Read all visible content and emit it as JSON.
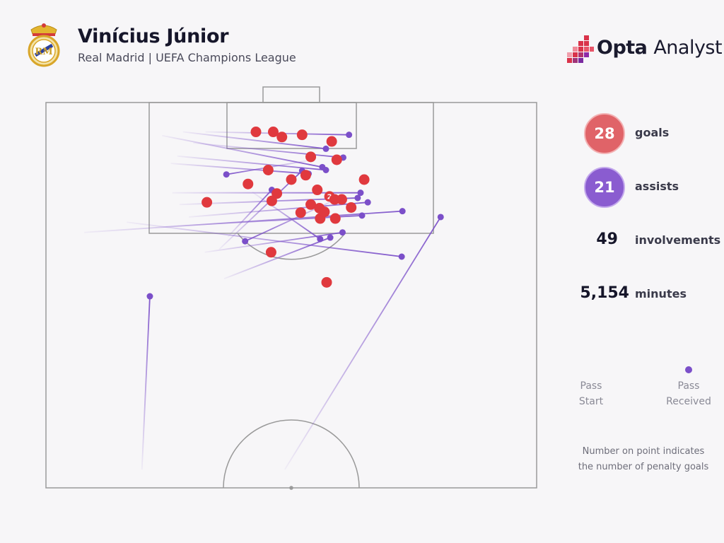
{
  "header": {
    "title": "Vinícius Júnior",
    "subtitle": "Real Madrid | UEFA Champions League",
    "brand_name": "Opta",
    "brand_suffix": "Analyst",
    "crest_icon": "real-madrid-crest-icon",
    "brand_icon": "opta-logo-icon"
  },
  "stats": {
    "goals_value": "28",
    "goals_label": "goals",
    "assists_value": "21",
    "assists_label": "assists",
    "involvements_value": "49",
    "involvements_label": "involvements",
    "minutes_value": "5,154",
    "minutes_label": "minutes"
  },
  "legend": {
    "start_line1": "Pass",
    "start_line2": "Start",
    "end_line1": "Pass",
    "end_line2": "Received",
    "note_line1": "Number on point indicates",
    "note_line2": "the number of penalty goals"
  },
  "colors": {
    "goal": "#e0393e",
    "assist": "#7b4fc9",
    "pitch_line": "#9a9a9a",
    "background": "#f7f6f8"
  },
  "chart_data": {
    "type": "scatter",
    "description": "Shot/assist map on a half pitch. Coordinates are in metres: x across the pitch width (0-68, left touchline to right), y distance from the goal line (0 at goal line). Goals are red circles at shot location; assists are purple lines from pass start to pass received point.",
    "x_range": [
      0,
      68
    ],
    "y_range": [
      0,
      52.5
    ],
    "goals": [
      {
        "x": 29.1,
        "y": 4.0
      },
      {
        "x": 31.5,
        "y": 4.0
      },
      {
        "x": 32.7,
        "y": 4.7
      },
      {
        "x": 35.5,
        "y": 4.4
      },
      {
        "x": 39.6,
        "y": 5.3
      },
      {
        "x": 36.7,
        "y": 7.4
      },
      {
        "x": 40.3,
        "y": 7.8
      },
      {
        "x": 30.8,
        "y": 9.2
      },
      {
        "x": 36.0,
        "y": 9.9
      },
      {
        "x": 34.0,
        "y": 10.5
      },
      {
        "x": 28.0,
        "y": 11.1
      },
      {
        "x": 44.1,
        "y": 10.5
      },
      {
        "x": 37.6,
        "y": 11.9
      },
      {
        "x": 32.0,
        "y": 12.4
      },
      {
        "x": 39.3,
        "y": 12.8,
        "penalty_goals": 2
      },
      {
        "x": 40.0,
        "y": 13.2
      },
      {
        "x": 41.0,
        "y": 13.2
      },
      {
        "x": 22.3,
        "y": 13.6
      },
      {
        "x": 31.3,
        "y": 13.4
      },
      {
        "x": 36.7,
        "y": 13.9
      },
      {
        "x": 37.9,
        "y": 14.4
      },
      {
        "x": 42.3,
        "y": 14.3
      },
      {
        "x": 35.3,
        "y": 15.0
      },
      {
        "x": 38.0,
        "y": 15.8
      },
      {
        "x": 40.1,
        "y": 15.8
      },
      {
        "x": 38.6,
        "y": 14.9
      },
      {
        "x": 31.2,
        "y": 20.4
      },
      {
        "x": 38.9,
        "y": 24.5
      }
    ],
    "assists": [
      {
        "start": {
          "x": 22.1,
          "y": 4.0
        },
        "end": {
          "x": 42.0,
          "y": 4.4
        }
      },
      {
        "start": {
          "x": 19.0,
          "y": 4.0
        },
        "end": {
          "x": 38.8,
          "y": 6.3
        }
      },
      {
        "start": {
          "x": 20.4,
          "y": 5.5
        },
        "end": {
          "x": 41.2,
          "y": 7.5
        }
      },
      {
        "start": {
          "x": 16.1,
          "y": 4.5
        },
        "end": {
          "x": 38.3,
          "y": 8.8
        }
      },
      {
        "start": {
          "x": 18.2,
          "y": 7.3
        },
        "end": {
          "x": 38.8,
          "y": 9.2
        }
      },
      {
        "start": {
          "x": 17.3,
          "y": 8.3
        },
        "end": {
          "x": 36.4,
          "y": 9.7
        }
      },
      {
        "start": {
          "x": 17.5,
          "y": 12.3
        },
        "end": {
          "x": 43.6,
          "y": 12.3
        }
      },
      {
        "start": {
          "x": 18.5,
          "y": 13.9
        },
        "end": {
          "x": 43.2,
          "y": 13.0
        }
      },
      {
        "start": {
          "x": 19.8,
          "y": 15.6
        },
        "end": {
          "x": 44.6,
          "y": 13.6
        }
      },
      {
        "start": {
          "x": 5.3,
          "y": 17.7
        },
        "end": {
          "x": 49.4,
          "y": 14.8
        }
      },
      {
        "start": {
          "x": 16.6,
          "y": 16.9
        },
        "end": {
          "x": 43.8,
          "y": 15.4
        }
      },
      {
        "start": {
          "x": 11.2,
          "y": 16.3
        },
        "end": {
          "x": 49.3,
          "y": 21.0
        }
      },
      {
        "start": {
          "x": 22.0,
          "y": 20.4
        },
        "end": {
          "x": 41.1,
          "y": 17.7
        }
      },
      {
        "start": {
          "x": 24.7,
          "y": 24.0
        },
        "end": {
          "x": 39.4,
          "y": 18.4
        }
      },
      {
        "start": {
          "x": 37.0,
          "y": 7.8
        },
        "end": {
          "x": 25.0,
          "y": 9.8
        }
      },
      {
        "start": {
          "x": 25.2,
          "y": 18.3
        },
        "end": {
          "x": 31.3,
          "y": 11.9
        }
      },
      {
        "start": {
          "x": 24.0,
          "y": 20.0
        },
        "end": {
          "x": 35.5,
          "y": 9.3
        }
      },
      {
        "start": {
          "x": 41.3,
          "y": 12.7
        },
        "end": {
          "x": 27.6,
          "y": 18.9
        }
      },
      {
        "start": {
          "x": 28.6,
          "y": 12.2
        },
        "end": {
          "x": 38.0,
          "y": 18.6
        }
      },
      {
        "start": {
          "x": 13.3,
          "y": 50.0
        },
        "end": {
          "x": 14.4,
          "y": 26.4
        }
      },
      {
        "start": {
          "x": 33.1,
          "y": 50.0
        },
        "end": {
          "x": 54.7,
          "y": 15.6
        }
      }
    ]
  }
}
